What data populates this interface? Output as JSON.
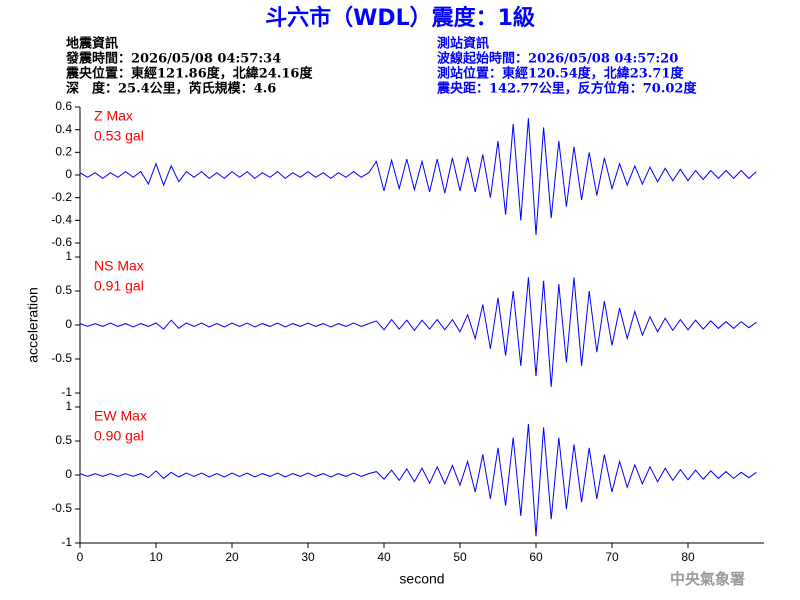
{
  "header": {
    "title": "斗六市（WDL）震度：1級",
    "left": [
      "地震資訊",
      "發震時間：2026/05/08 04:57:34",
      "震央位置：東經121.86度，北緯24.16度",
      "深　度：25.4公里，芮氏規模：4.6"
    ],
    "right": [
      "測站資訊",
      "波線起始時間：2026/05/08 04:57:20",
      "測站位置：東經120.54度，北緯23.71度",
      "震央距：142.77公里，反方位角：70.02度"
    ]
  },
  "y_label": "acceleration",
  "footer": "中央氣象署",
  "chart_data": [
    {
      "type": "line",
      "annotation": [
        "Z Max",
        "0.53 gal"
      ],
      "color": "#0000ff",
      "xlim": [
        0,
        90
      ],
      "ylim": [
        -0.6,
        0.6
      ],
      "yticks": [
        -0.6,
        -0.4,
        -0.2,
        0,
        0.2,
        0.4,
        0.6
      ],
      "x": [
        0,
        1,
        2,
        3,
        4,
        5,
        6,
        7,
        8,
        9,
        10,
        11,
        12,
        13,
        14,
        15,
        16,
        17,
        18,
        19,
        20,
        21,
        22,
        23,
        24,
        25,
        26,
        27,
        28,
        29,
        30,
        31,
        32,
        33,
        34,
        35,
        36,
        37,
        38,
        39,
        40,
        41,
        42,
        43,
        44,
        45,
        46,
        47,
        48,
        49,
        50,
        51,
        52,
        53,
        54,
        55,
        56,
        57,
        58,
        59,
        60,
        61,
        62,
        63,
        64,
        65,
        66,
        67,
        68,
        69,
        70,
        71,
        72,
        73,
        74,
        75,
        76,
        77,
        78,
        79,
        80,
        81,
        82,
        83,
        84,
        85,
        86,
        87,
        88,
        89
      ],
      "values": [
        0.02,
        -0.02,
        0.02,
        -0.03,
        0.02,
        -0.02,
        0.03,
        -0.02,
        0.03,
        -0.08,
        0.1,
        -0.09,
        0.08,
        -0.06,
        0.03,
        -0.02,
        0.03,
        -0.03,
        0.02,
        -0.03,
        0.03,
        -0.02,
        0.03,
        -0.03,
        0.02,
        -0.02,
        0.03,
        -0.03,
        0.02,
        -0.02,
        0.03,
        -0.02,
        0.02,
        -0.03,
        0.02,
        -0.02,
        0.03,
        -0.02,
        0.02,
        0.12,
        -0.14,
        0.13,
        -0.12,
        0.14,
        -0.13,
        0.12,
        -0.15,
        0.14,
        -0.16,
        0.15,
        -0.14,
        0.16,
        -0.15,
        0.18,
        -0.2,
        0.3,
        -0.35,
        0.45,
        -0.4,
        0.5,
        -0.53,
        0.42,
        -0.38,
        0.3,
        -0.28,
        0.25,
        -0.22,
        0.2,
        -0.18,
        0.15,
        -0.12,
        0.1,
        -0.09,
        0.08,
        -0.08,
        0.07,
        -0.06,
        0.06,
        -0.05,
        0.05,
        -0.05,
        0.04,
        -0.04,
        0.04,
        -0.03,
        0.04,
        -0.03,
        0.04,
        -0.03,
        0.03
      ]
    },
    {
      "type": "line",
      "annotation": [
        "NS Max",
        "0.91 gal"
      ],
      "color": "#0000ff",
      "xlim": [
        0,
        90
      ],
      "ylim": [
        -1,
        1
      ],
      "yticks": [
        -1,
        -0.5,
        0,
        0.5,
        1
      ],
      "x": [
        0,
        1,
        2,
        3,
        4,
        5,
        6,
        7,
        8,
        9,
        10,
        11,
        12,
        13,
        14,
        15,
        16,
        17,
        18,
        19,
        20,
        21,
        22,
        23,
        24,
        25,
        26,
        27,
        28,
        29,
        30,
        31,
        32,
        33,
        34,
        35,
        36,
        37,
        38,
        39,
        40,
        41,
        42,
        43,
        44,
        45,
        46,
        47,
        48,
        49,
        50,
        51,
        52,
        53,
        54,
        55,
        56,
        57,
        58,
        59,
        60,
        61,
        62,
        63,
        64,
        65,
        66,
        67,
        68,
        69,
        70,
        71,
        72,
        73,
        74,
        75,
        76,
        77,
        78,
        79,
        80,
        81,
        82,
        83,
        84,
        85,
        86,
        87,
        88,
        89
      ],
      "values": [
        0.02,
        -0.02,
        0.02,
        -0.02,
        0.03,
        -0.02,
        0.02,
        -0.03,
        0.02,
        -0.02,
        0.03,
        -0.06,
        0.07,
        -0.05,
        0.03,
        -0.02,
        0.03,
        -0.03,
        0.02,
        -0.03,
        0.03,
        -0.02,
        0.03,
        -0.03,
        0.02,
        -0.02,
        0.03,
        -0.03,
        0.02,
        -0.02,
        0.03,
        -0.02,
        0.02,
        -0.03,
        0.02,
        -0.02,
        0.03,
        -0.02,
        0.02,
        0.06,
        -0.07,
        0.08,
        -0.06,
        0.07,
        -0.08,
        0.07,
        -0.06,
        0.08,
        -0.07,
        0.08,
        -0.1,
        0.15,
        -0.2,
        0.3,
        -0.35,
        0.4,
        -0.45,
        0.5,
        -0.6,
        0.7,
        -0.75,
        0.65,
        -0.91,
        0.6,
        -0.55,
        0.7,
        -0.6,
        0.5,
        -0.4,
        0.35,
        -0.3,
        0.25,
        -0.2,
        0.2,
        -0.15,
        0.12,
        -0.1,
        0.1,
        -0.08,
        0.08,
        -0.07,
        0.07,
        -0.06,
        0.06,
        -0.05,
        0.05,
        -0.05,
        0.05,
        -0.04,
        0.04
      ]
    },
    {
      "type": "line",
      "annotation": [
        "EW Max",
        "0.90 gal"
      ],
      "color": "#0000ff",
      "xlim": [
        0,
        90
      ],
      "ylim": [
        -1,
        1
      ],
      "yticks": [
        -1,
        -0.5,
        0,
        0.5,
        1
      ],
      "xticks": [
        0,
        10,
        20,
        30,
        40,
        50,
        60,
        70,
        80
      ],
      "x_label": "second",
      "x": [
        0,
        1,
        2,
        3,
        4,
        5,
        6,
        7,
        8,
        9,
        10,
        11,
        12,
        13,
        14,
        15,
        16,
        17,
        18,
        19,
        20,
        21,
        22,
        23,
        24,
        25,
        26,
        27,
        28,
        29,
        30,
        31,
        32,
        33,
        34,
        35,
        36,
        37,
        38,
        39,
        40,
        41,
        42,
        43,
        44,
        45,
        46,
        47,
        48,
        49,
        50,
        51,
        52,
        53,
        54,
        55,
        56,
        57,
        58,
        59,
        60,
        61,
        62,
        63,
        64,
        65,
        66,
        67,
        68,
        69,
        70,
        71,
        72,
        73,
        74,
        75,
        76,
        77,
        78,
        79,
        80,
        81,
        82,
        83,
        84,
        85,
        86,
        87,
        88,
        89
      ],
      "values": [
        0.02,
        -0.02,
        0.02,
        -0.02,
        0.02,
        -0.02,
        0.02,
        -0.02,
        0.02,
        -0.04,
        0.06,
        -0.05,
        0.04,
        -0.03,
        0.03,
        -0.02,
        0.03,
        -0.03,
        0.02,
        -0.03,
        0.03,
        -0.02,
        0.03,
        -0.03,
        0.02,
        -0.02,
        0.03,
        -0.03,
        0.02,
        -0.02,
        0.03,
        -0.02,
        0.02,
        -0.03,
        0.02,
        -0.02,
        0.03,
        -0.02,
        0.02,
        0.05,
        -0.06,
        0.07,
        -0.08,
        0.09,
        -0.1,
        0.1,
        -0.12,
        0.12,
        -0.13,
        0.14,
        -0.15,
        0.2,
        -0.25,
        0.3,
        -0.35,
        0.4,
        -0.45,
        0.55,
        -0.6,
        0.75,
        -0.9,
        0.7,
        -0.65,
        0.55,
        -0.5,
        0.45,
        -0.4,
        0.4,
        -0.35,
        0.3,
        -0.25,
        0.2,
        -0.18,
        0.15,
        -0.13,
        0.12,
        -0.1,
        0.1,
        -0.08,
        0.08,
        -0.07,
        0.07,
        -0.06,
        0.06,
        -0.05,
        0.05,
        -0.05,
        0.04,
        -0.04,
        0.04
      ]
    }
  ]
}
